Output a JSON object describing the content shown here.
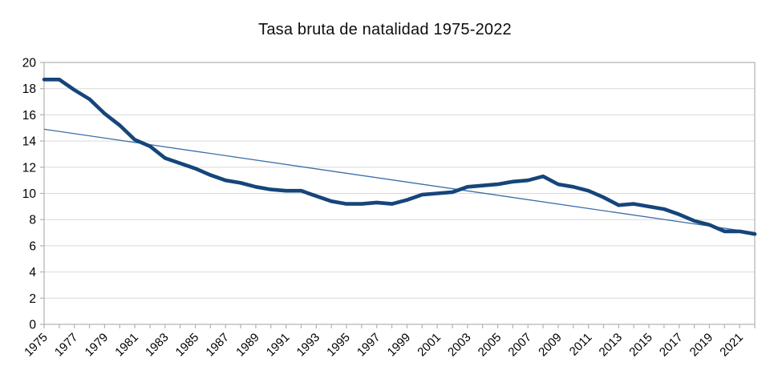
{
  "title": "Tasa bruta de natalidad 1975-2022",
  "chart_data": {
    "type": "line",
    "title": "Tasa bruta de natalidad 1975-2022",
    "xlabel": "",
    "ylabel": "",
    "x_start": 1975,
    "x_end": 2022,
    "years": [
      1975,
      1976,
      1977,
      1978,
      1979,
      1980,
      1981,
      1982,
      1983,
      1984,
      1985,
      1986,
      1987,
      1988,
      1989,
      1990,
      1991,
      1992,
      1993,
      1994,
      1995,
      1996,
      1997,
      1998,
      1999,
      2000,
      2001,
      2002,
      2003,
      2004,
      2005,
      2006,
      2007,
      2008,
      2009,
      2010,
      2011,
      2012,
      2013,
      2014,
      2015,
      2016,
      2017,
      2018,
      2019,
      2020,
      2021,
      2022
    ],
    "series": [
      {
        "name": "Tasa bruta de natalidad",
        "color": "#15457a",
        "stroke_width": 4.6,
        "values": [
          18.7,
          18.7,
          17.9,
          17.2,
          16.1,
          15.2,
          14.1,
          13.6,
          12.7,
          12.3,
          11.9,
          11.4,
          11.0,
          10.8,
          10.5,
          10.3,
          10.2,
          10.2,
          9.8,
          9.4,
          9.2,
          9.2,
          9.3,
          9.2,
          9.5,
          9.9,
          10.0,
          10.1,
          10.5,
          10.6,
          10.7,
          10.9,
          11.0,
          11.3,
          10.7,
          10.5,
          10.2,
          9.7,
          9.1,
          9.2,
          9.0,
          8.8,
          8.4,
          7.9,
          7.6,
          7.1,
          7.1,
          6.9
        ]
      },
      {
        "name": "Tendencia lineal",
        "color": "#3a6ea8",
        "stroke_width": 1.3,
        "trend": true,
        "start_value": 14.9,
        "end_value": 7.0
      }
    ],
    "ylim": [
      0,
      20
    ],
    "ytick_step": 2,
    "ytick_labels": [
      "0",
      "2",
      "4",
      "6",
      "8",
      "10",
      "12",
      "14",
      "16",
      "18",
      "20"
    ],
    "xtick_labels": [
      "1975",
      "1977",
      "1979",
      "1981",
      "1983",
      "1985",
      "1987",
      "1989",
      "1991",
      "1993",
      "1995",
      "1997",
      "1999",
      "2001",
      "2003",
      "2005",
      "2007",
      "2009",
      "2011",
      "2013",
      "2015",
      "2017",
      "2019",
      "2021"
    ],
    "grid": "horizontal",
    "legend": "none",
    "axis_color": "#b2b2b2",
    "grid_color": "#d9d9d9",
    "label_color": "#000000"
  }
}
